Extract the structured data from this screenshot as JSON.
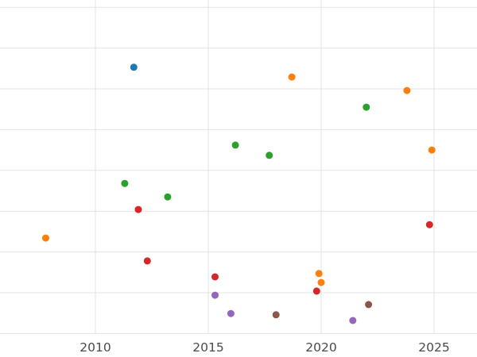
{
  "chart_data": {
    "type": "scatter",
    "title": "",
    "xlabel": "",
    "ylabel": "",
    "grid": true,
    "legend": false,
    "x_ticks": [
      2010,
      2015,
      2020,
      2025
    ],
    "x_tick_labels": [
      "2010",
      "2015",
      "2020",
      "2025"
    ],
    "y_tick_labels": [],
    "y_axis_labeled": false,
    "y_gridline_values": [
      0,
      1,
      2,
      3,
      4,
      5,
      6,
      7,
      8
    ],
    "xlim": [
      2005.8,
      2026.9
    ],
    "ylim": [
      0,
      8.2
    ],
    "style": {
      "background_color": "#ffffff",
      "gridline_color": "#e3e3e3",
      "tick_label_color": "#4a4a4a",
      "marker_radius": 4.5
    },
    "series": [
      {
        "name": "blue",
        "color": "#1f77b4",
        "points": [
          {
            "x": 2011.7,
            "y": 6.53
          }
        ]
      },
      {
        "name": "orange",
        "color": "#ff7f0e",
        "points": [
          {
            "x": 2007.8,
            "y": 2.34
          },
          {
            "x": 2018.7,
            "y": 6.29
          },
          {
            "x": 2019.9,
            "y": 1.47
          },
          {
            "x": 2020.0,
            "y": 1.25
          },
          {
            "x": 2023.8,
            "y": 5.96
          },
          {
            "x": 2024.9,
            "y": 4.5
          }
        ]
      },
      {
        "name": "green",
        "color": "#2ca02c",
        "points": [
          {
            "x": 2011.3,
            "y": 3.68
          },
          {
            "x": 2013.2,
            "y": 3.35
          },
          {
            "x": 2016.2,
            "y": 4.62
          },
          {
            "x": 2017.7,
            "y": 4.37
          },
          {
            "x": 2022.0,
            "y": 5.55
          }
        ]
      },
      {
        "name": "red",
        "color": "#d62728",
        "points": [
          {
            "x": 2011.9,
            "y": 3.04
          },
          {
            "x": 2012.3,
            "y": 1.78
          },
          {
            "x": 2015.3,
            "y": 1.39
          },
          {
            "x": 2019.8,
            "y": 1.04
          },
          {
            "x": 2024.8,
            "y": 2.67
          }
        ]
      },
      {
        "name": "purple",
        "color": "#9467bd",
        "points": [
          {
            "x": 2015.3,
            "y": 0.94
          },
          {
            "x": 2016.0,
            "y": 0.49
          },
          {
            "x": 2021.4,
            "y": 0.32
          }
        ]
      },
      {
        "name": "brown",
        "color": "#8c564b",
        "points": [
          {
            "x": 2018.0,
            "y": 0.46
          },
          {
            "x": 2022.1,
            "y": 0.71
          }
        ]
      }
    ]
  }
}
